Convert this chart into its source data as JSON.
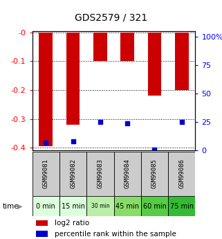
{
  "title": "GDS2579 / 321",
  "samples": [
    "GSM99081",
    "GSM99082",
    "GSM99083",
    "GSM99084",
    "GSM99085",
    "GSM99086"
  ],
  "time_labels": [
    "0 min",
    "15 min",
    "30 min",
    "45 min",
    "60 min",
    "75 min"
  ],
  "time_bg_colors": [
    "#ddffdd",
    "#ddffdd",
    "#bbeeaa",
    "#88dd66",
    "#55cc44",
    "#33bb33"
  ],
  "log2_values": [
    -0.395,
    -0.32,
    -0.1,
    -0.1,
    -0.22,
    -0.2
  ],
  "percentile_values": [
    7,
    8,
    25,
    24,
    1,
    25
  ],
  "bar_color": "#cc0000",
  "percentile_color": "#0000cc",
  "ylim_left": [
    -0.41,
    0.005
  ],
  "ylim_right": [
    0,
    105
  ],
  "yticks_left": [
    -0.4,
    -0.3,
    -0.2,
    -0.1,
    0
  ],
  "ytick_labels_left": [
    "-0.4",
    "-0.3",
    "-0.2",
    "-0.1",
    "-0"
  ],
  "yticks_right": [
    0,
    25,
    50,
    75,
    100
  ],
  "ytick_labels_right": [
    "0",
    "25",
    "50",
    "75",
    "100%"
  ],
  "sample_bg_color": "#cccccc",
  "bar_width": 0.5
}
